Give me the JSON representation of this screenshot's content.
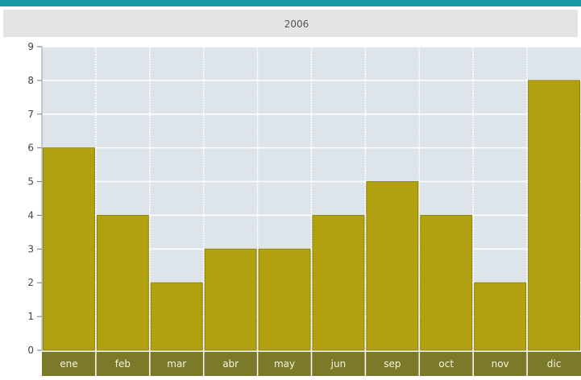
{
  "colors": {
    "header_bar": "#1a9aa6",
    "title_band": "#e2e4e6",
    "plot_bg": "#dde4ea",
    "grid": "#ffffff",
    "bar": "#b1a110",
    "bar_edge": "#8f8208",
    "category_band": "#7b7a2a"
  },
  "chart_data": {
    "type": "bar",
    "title": "2006",
    "xlabel": "",
    "ylabel": "",
    "categories": [
      "ene",
      "feb",
      "mar",
      "abr",
      "may",
      "jun",
      "sep",
      "oct",
      "nov",
      "dic"
    ],
    "values": [
      6,
      4,
      2,
      3,
      3,
      4,
      5,
      4,
      2,
      8
    ],
    "ylim": [
      0,
      9
    ],
    "yticks": [
      "0",
      "1",
      "2",
      "3",
      "4",
      "5",
      "6",
      "7",
      "8",
      "9"
    ],
    "grid": true,
    "legend": "none"
  }
}
